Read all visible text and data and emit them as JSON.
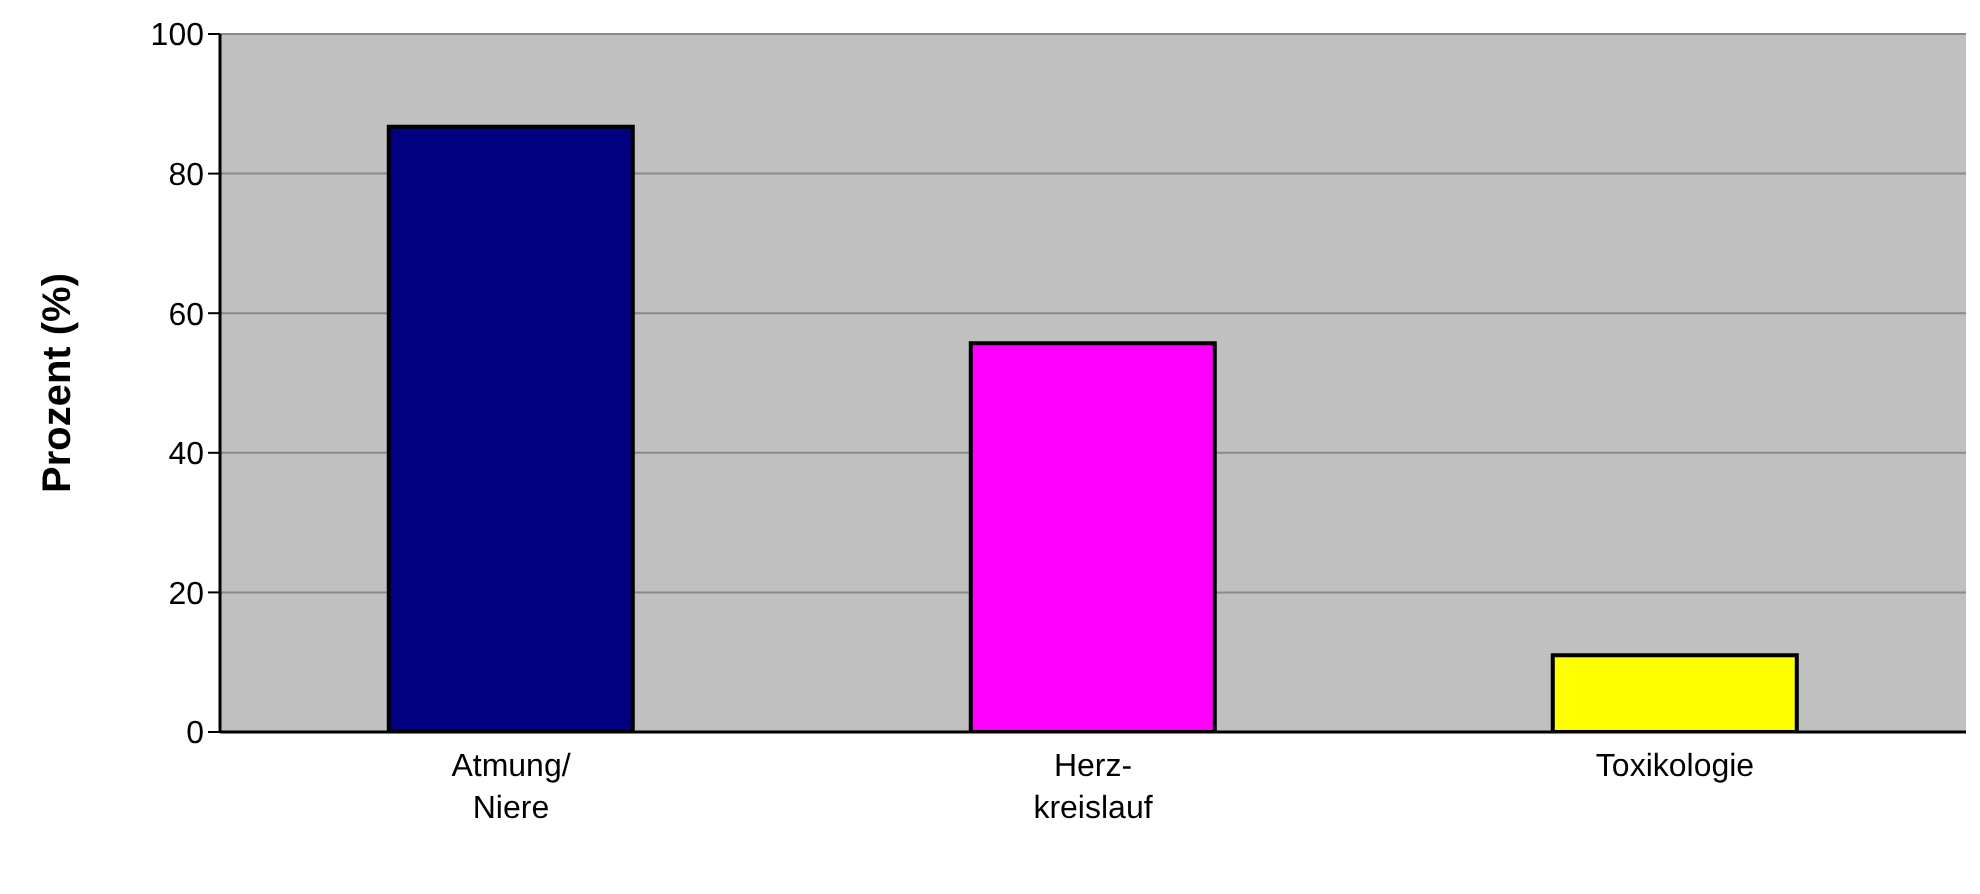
{
  "chart_data": {
    "type": "bar",
    "ylabel": "Prozent (%)",
    "categories": [
      "Atmung/\nNiere",
      "Herz-\nkreislauf",
      "Toxikologie"
    ],
    "values": [
      86.7,
      55.7,
      11.0
    ],
    "colors": [
      "#000080",
      "#ff00ff",
      "#ffff00"
    ],
    "ylim": [
      0,
      100
    ],
    "yticks": [
      0,
      20,
      40,
      60,
      80,
      100
    ],
    "grid": "y",
    "legend": false
  }
}
